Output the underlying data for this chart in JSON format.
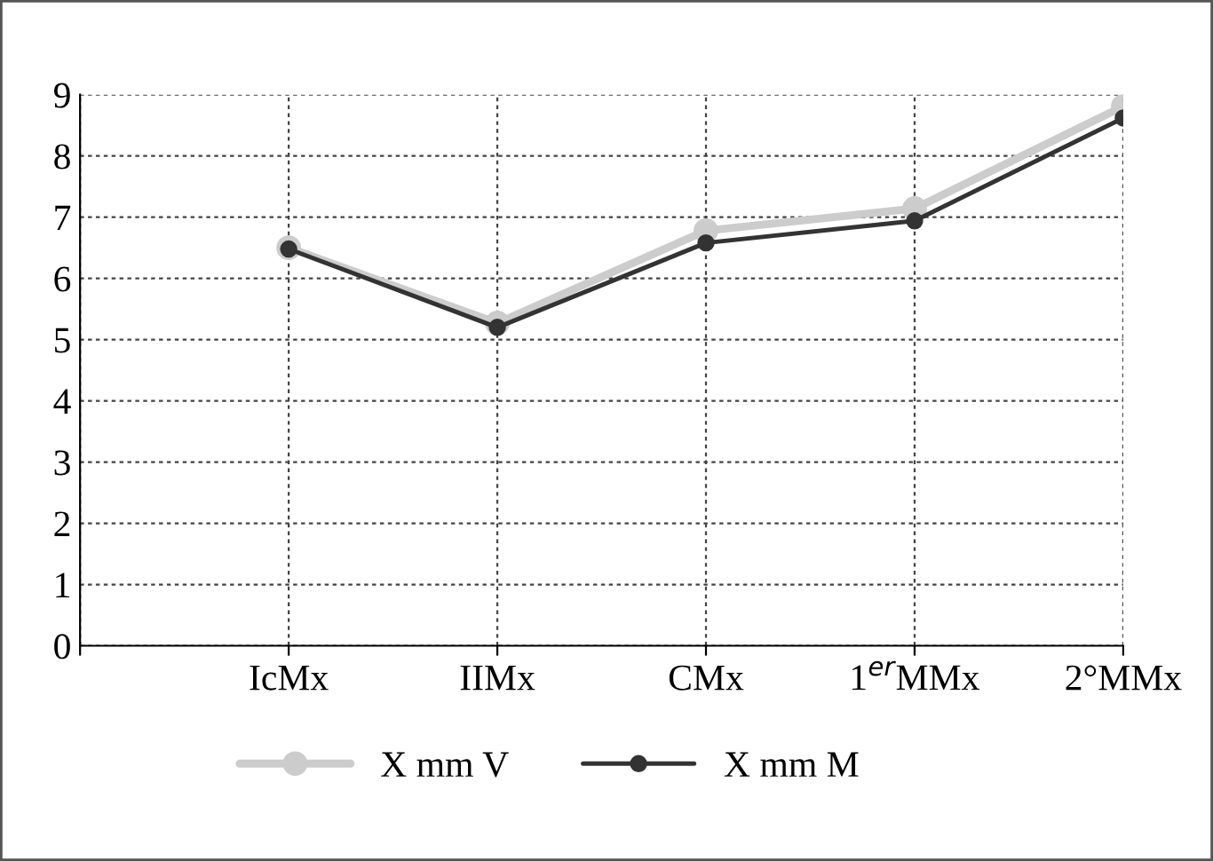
{
  "chart_data": {
    "type": "line",
    "categories": [
      null,
      "IcMx",
      "IIMx",
      "CMx",
      "1$^{er}$MMx",
      "2°MMx"
    ],
    "series": [
      {
        "name": "X mm V",
        "color": "#cccccc",
        "values": [
          null,
          6.5,
          5.27,
          6.78,
          7.14,
          8.81
        ]
      },
      {
        "name": "X mm M",
        "color": "#333333",
        "values": [
          null,
          6.48,
          5.2,
          6.58,
          6.94,
          8.62
        ]
      }
    ],
    "ylim": [
      0,
      9
    ],
    "yticks": [
      0,
      1,
      2,
      3,
      4,
      5,
      6,
      7,
      8,
      9
    ],
    "grid": true,
    "legend": "bottom",
    "marker": "circle",
    "line_style": "solid"
  }
}
